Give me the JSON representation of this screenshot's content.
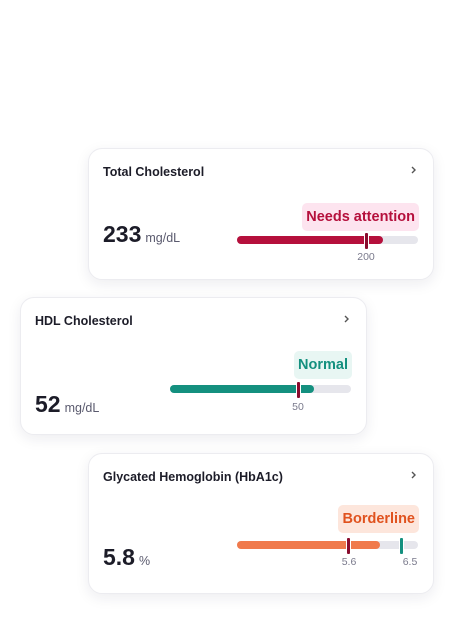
{
  "cards": [
    {
      "title": "Total Cholesterol",
      "value": "233",
      "unit": "mg/dL",
      "status": "Needs attention",
      "thresholds": [
        "200"
      ]
    },
    {
      "title": "HDL Cholesterol",
      "value": "52",
      "unit": "mg/dL",
      "status": "Normal",
      "thresholds": [
        "50"
      ]
    },
    {
      "title": "Glycated Hemoglobin (HbA1c)",
      "value": "5.8",
      "unit": "%",
      "status": "Borderline",
      "thresholds": [
        "5.6",
        "6.5"
      ]
    }
  ]
}
